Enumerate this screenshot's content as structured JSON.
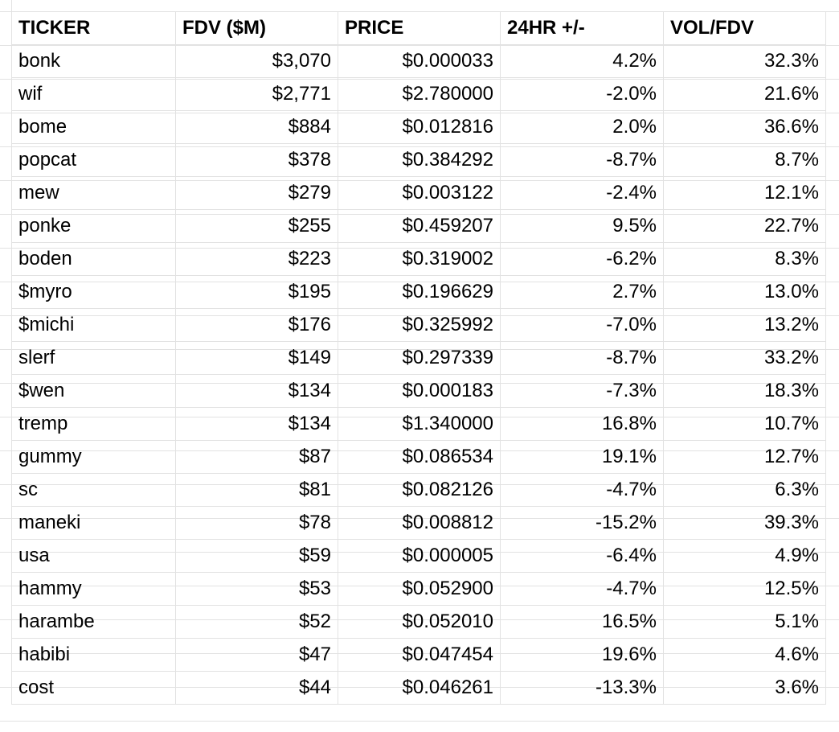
{
  "table": {
    "header": [
      "TICKER",
      "FDV ($M)",
      "PRICE",
      "24HR +/-",
      "VOL/FDV"
    ],
    "rows": [
      [
        "bonk",
        "$3,070",
        "$0.000033",
        "4.2%",
        "32.3%"
      ],
      [
        "wif",
        "$2,771",
        "$2.780000",
        "-2.0%",
        "21.6%"
      ],
      [
        "bome",
        "$884",
        "$0.012816",
        "2.0%",
        "36.6%"
      ],
      [
        "popcat",
        "$378",
        "$0.384292",
        "-8.7%",
        "8.7%"
      ],
      [
        "mew",
        "$279",
        "$0.003122",
        "-2.4%",
        "12.1%"
      ],
      [
        "ponke",
        "$255",
        "$0.459207",
        "9.5%",
        "22.7%"
      ],
      [
        "boden",
        "$223",
        "$0.319002",
        "-6.2%",
        "8.3%"
      ],
      [
        "$myro",
        "$195",
        "$0.196629",
        "2.7%",
        "13.0%"
      ],
      [
        "$michi",
        "$176",
        "$0.325992",
        "-7.0%",
        "13.2%"
      ],
      [
        "slerf",
        "$149",
        "$0.297339",
        "-8.7%",
        "33.2%"
      ],
      [
        "$wen",
        "$134",
        "$0.000183",
        "-7.3%",
        "18.3%"
      ],
      [
        "tremp",
        "$134",
        "$1.340000",
        "16.8%",
        "10.7%"
      ],
      [
        "gummy",
        "$87",
        "$0.086534",
        "19.1%",
        "12.7%"
      ],
      [
        "sc",
        "$81",
        "$0.082126",
        "-4.7%",
        "6.3%"
      ],
      [
        "maneki",
        "$78",
        "$0.008812",
        "-15.2%",
        "39.3%"
      ],
      [
        "usa",
        "$59",
        "$0.000005",
        "-6.4%",
        "4.9%"
      ],
      [
        "hammy",
        "$53",
        "$0.052900",
        "-4.7%",
        "12.5%"
      ],
      [
        "harambe",
        "$52",
        "$0.052010",
        "16.5%",
        "5.1%"
      ],
      [
        "habibi",
        "$47",
        "$0.047454",
        "19.6%",
        "4.6%"
      ],
      [
        "cost",
        "$44",
        "$0.046261",
        "-13.3%",
        "3.6%"
      ]
    ]
  }
}
